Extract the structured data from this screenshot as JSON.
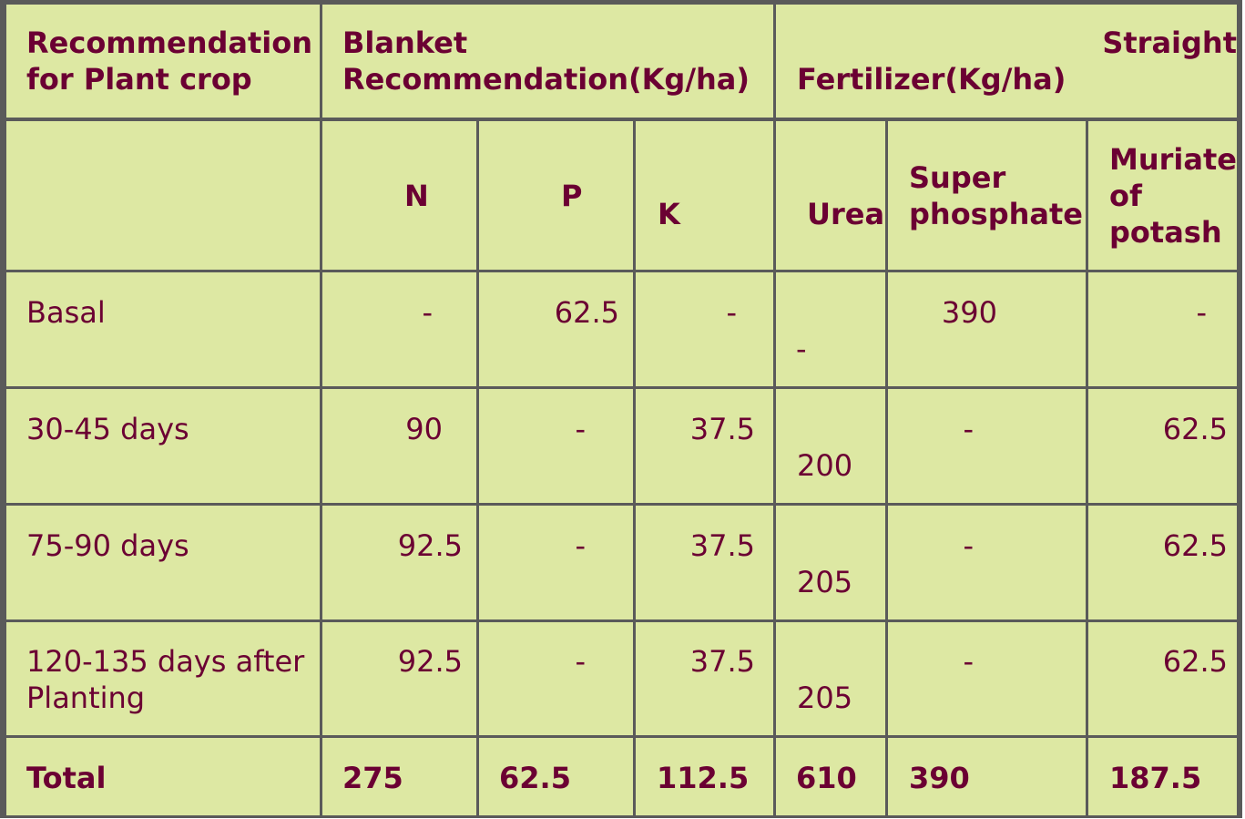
{
  "table": {
    "header": {
      "recommendation": [
        "Recommendation",
        "for Plant crop"
      ],
      "blanket": [
        "Blanket",
        "Recommendation(Kg/ha)"
      ],
      "straight": [
        "Straight",
        "Fertilizer(Kg/ha)"
      ]
    },
    "subheader": {
      "n": "N",
      "p": "P",
      "k": "K",
      "urea": "Urea",
      "super_phosphate": [
        "Super",
        "phosphate"
      ],
      "muriate_of_potash": [
        "Muriate",
        "of",
        "potash"
      ]
    },
    "rows": [
      {
        "stage": [
          "Basal"
        ],
        "n": "-",
        "p": "62.5",
        "k": "-",
        "urea": "-",
        "super_phosphate": "390",
        "muriate_of_potash": "-"
      },
      {
        "stage": [
          "30-45 days"
        ],
        "n": "90",
        "p": "-",
        "k": "37.5",
        "urea": "200",
        "super_phosphate": "-",
        "muriate_of_potash": "62.5"
      },
      {
        "stage": [
          "75-90 days"
        ],
        "n": "92.5",
        "p": "-",
        "k": "37.5",
        "urea": "205",
        "super_phosphate": "-",
        "muriate_of_potash": "62.5"
      },
      {
        "stage": [
          "120-135 days after",
          "Planting"
        ],
        "n": "92.5",
        "p": "-",
        "k": "37.5",
        "urea": "205",
        "super_phosphate": "-",
        "muriate_of_potash": "62.5"
      }
    ],
    "total": {
      "label": "Total",
      "n": "275",
      "p": "62.5",
      "k": "112.5",
      "urea": "610",
      "super_phosphate": "390",
      "muriate_of_potash": "187.5"
    }
  }
}
